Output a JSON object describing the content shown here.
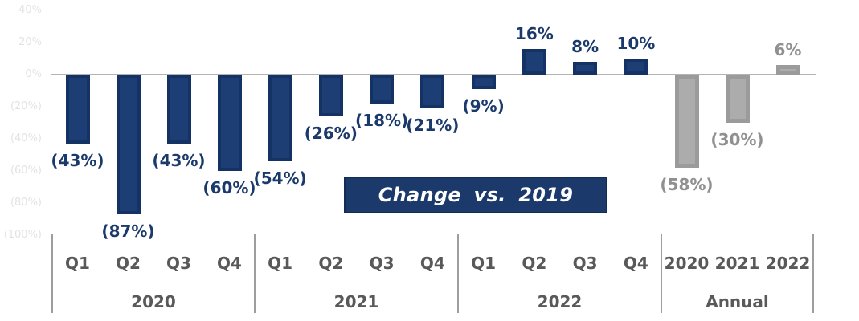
{
  "title_box": {
    "text": "Change vs. 2019"
  },
  "chart_data": {
    "type": "bar",
    "title": "Change vs. 2019",
    "unit": "percent change vs. 2019",
    "y_axis": {
      "range": [
        -100,
        40
      ],
      "grid": false,
      "ticks": [
        {
          "value": 40,
          "label": "40%"
        },
        {
          "value": 20,
          "label": "20%"
        },
        {
          "value": 0,
          "label": "0%"
        },
        {
          "value": -20,
          "label": "(20%)"
        },
        {
          "value": -40,
          "label": "(40%)"
        },
        {
          "value": -60,
          "label": "(60%)"
        },
        {
          "value": -80,
          "label": "(80%)"
        },
        {
          "value": -100,
          "label": "(100%)"
        }
      ]
    },
    "groups": [
      {
        "label": "2020",
        "variant": "navy",
        "items": [
          {
            "label": "Q1",
            "value": -43,
            "value_label": "(43%)"
          },
          {
            "label": "Q2",
            "value": -87,
            "value_label": "(87%)"
          },
          {
            "label": "Q3",
            "value": -43,
            "value_label": "(43%)"
          },
          {
            "label": "Q4",
            "value": -60,
            "value_label": "(60%)"
          }
        ]
      },
      {
        "label": "2021",
        "variant": "navy",
        "items": [
          {
            "label": "Q1",
            "value": -54,
            "value_label": "(54%)"
          },
          {
            "label": "Q2",
            "value": -26,
            "value_label": "(26%)"
          },
          {
            "label": "Q3",
            "value": -18,
            "value_label": "(18%)"
          },
          {
            "label": "Q4",
            "value": -21,
            "value_label": "(21%)"
          }
        ]
      },
      {
        "label": "2022",
        "variant": "navy",
        "items": [
          {
            "label": "Q1",
            "value": -9,
            "value_label": "(9%)"
          },
          {
            "label": "Q2",
            "value": 16,
            "value_label": "16%"
          },
          {
            "label": "Q3",
            "value": 8,
            "value_label": "8%"
          },
          {
            "label": "Q4",
            "value": 10,
            "value_label": "10%"
          }
        ]
      },
      {
        "label": "Annual",
        "variant": "gray",
        "items": [
          {
            "label": "2020",
            "value": -58,
            "value_label": "(58%)"
          },
          {
            "label": "2021",
            "value": -30,
            "value_label": "(30%)"
          },
          {
            "label": "2022",
            "value": 6,
            "value_label": "6%"
          }
        ]
      }
    ],
    "colors": {
      "navy_bar": "#1d3d75",
      "navy_bar_edge": "#153264",
      "navy_label": "#1b3a6b",
      "gray_bar": "#acacac",
      "gray_bar_edge": "#9b9b9b",
      "gray_label": "#909090",
      "axis_category_text": "#595959",
      "faint_tick_text": "#e3e3e3",
      "zero_line": "#b3b3b3",
      "divider": "#9e9e9e",
      "title_bg": "#1b3a6b",
      "title_text": "#ffffff"
    }
  }
}
